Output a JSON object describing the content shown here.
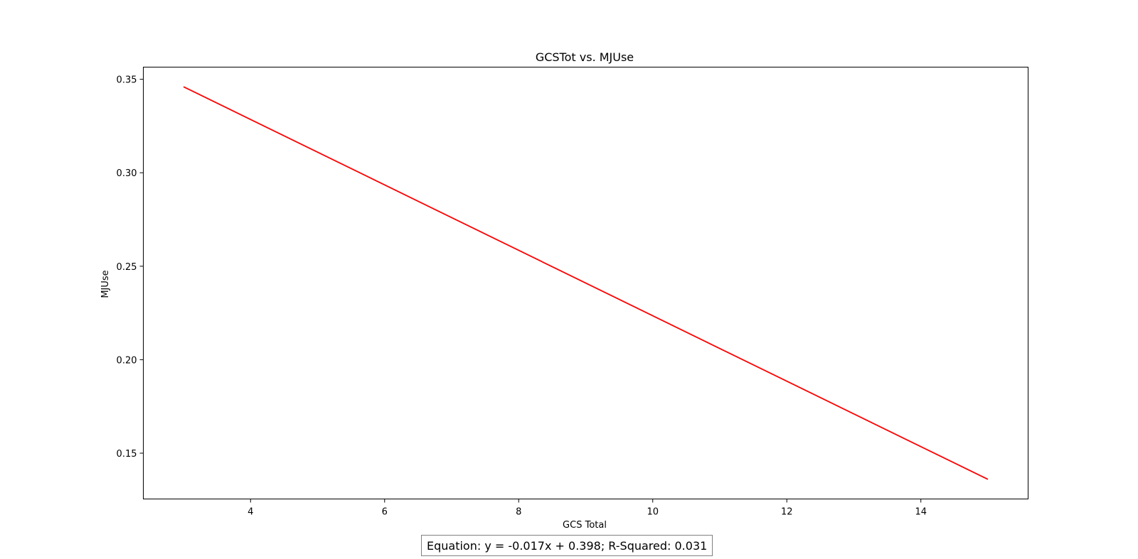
{
  "chart_data": {
    "type": "line",
    "title": "GCSTot vs. MJUse",
    "xlabel": "GCS Total",
    "ylabel": "MJUse",
    "xlim": [
      2.4,
      15.6
    ],
    "ylim": [
      0.1255,
      0.3565
    ],
    "xticks": [
      4,
      6,
      8,
      10,
      12,
      14
    ],
    "yticks": [
      0.15,
      0.2,
      0.25,
      0.3,
      0.35
    ],
    "xtick_labels": [
      "4",
      "6",
      "8",
      "10",
      "12",
      "14"
    ],
    "ytick_labels": [
      "0.15",
      "0.20",
      "0.25",
      "0.30",
      "0.35"
    ],
    "grid": false,
    "series": [
      {
        "color": "#ff0000",
        "x": [
          3,
          15
        ],
        "y": [
          0.346,
          0.136
        ]
      }
    ],
    "annotation": "Equation: y = -0.017x + 0.398; R-Squared: 0.031"
  }
}
